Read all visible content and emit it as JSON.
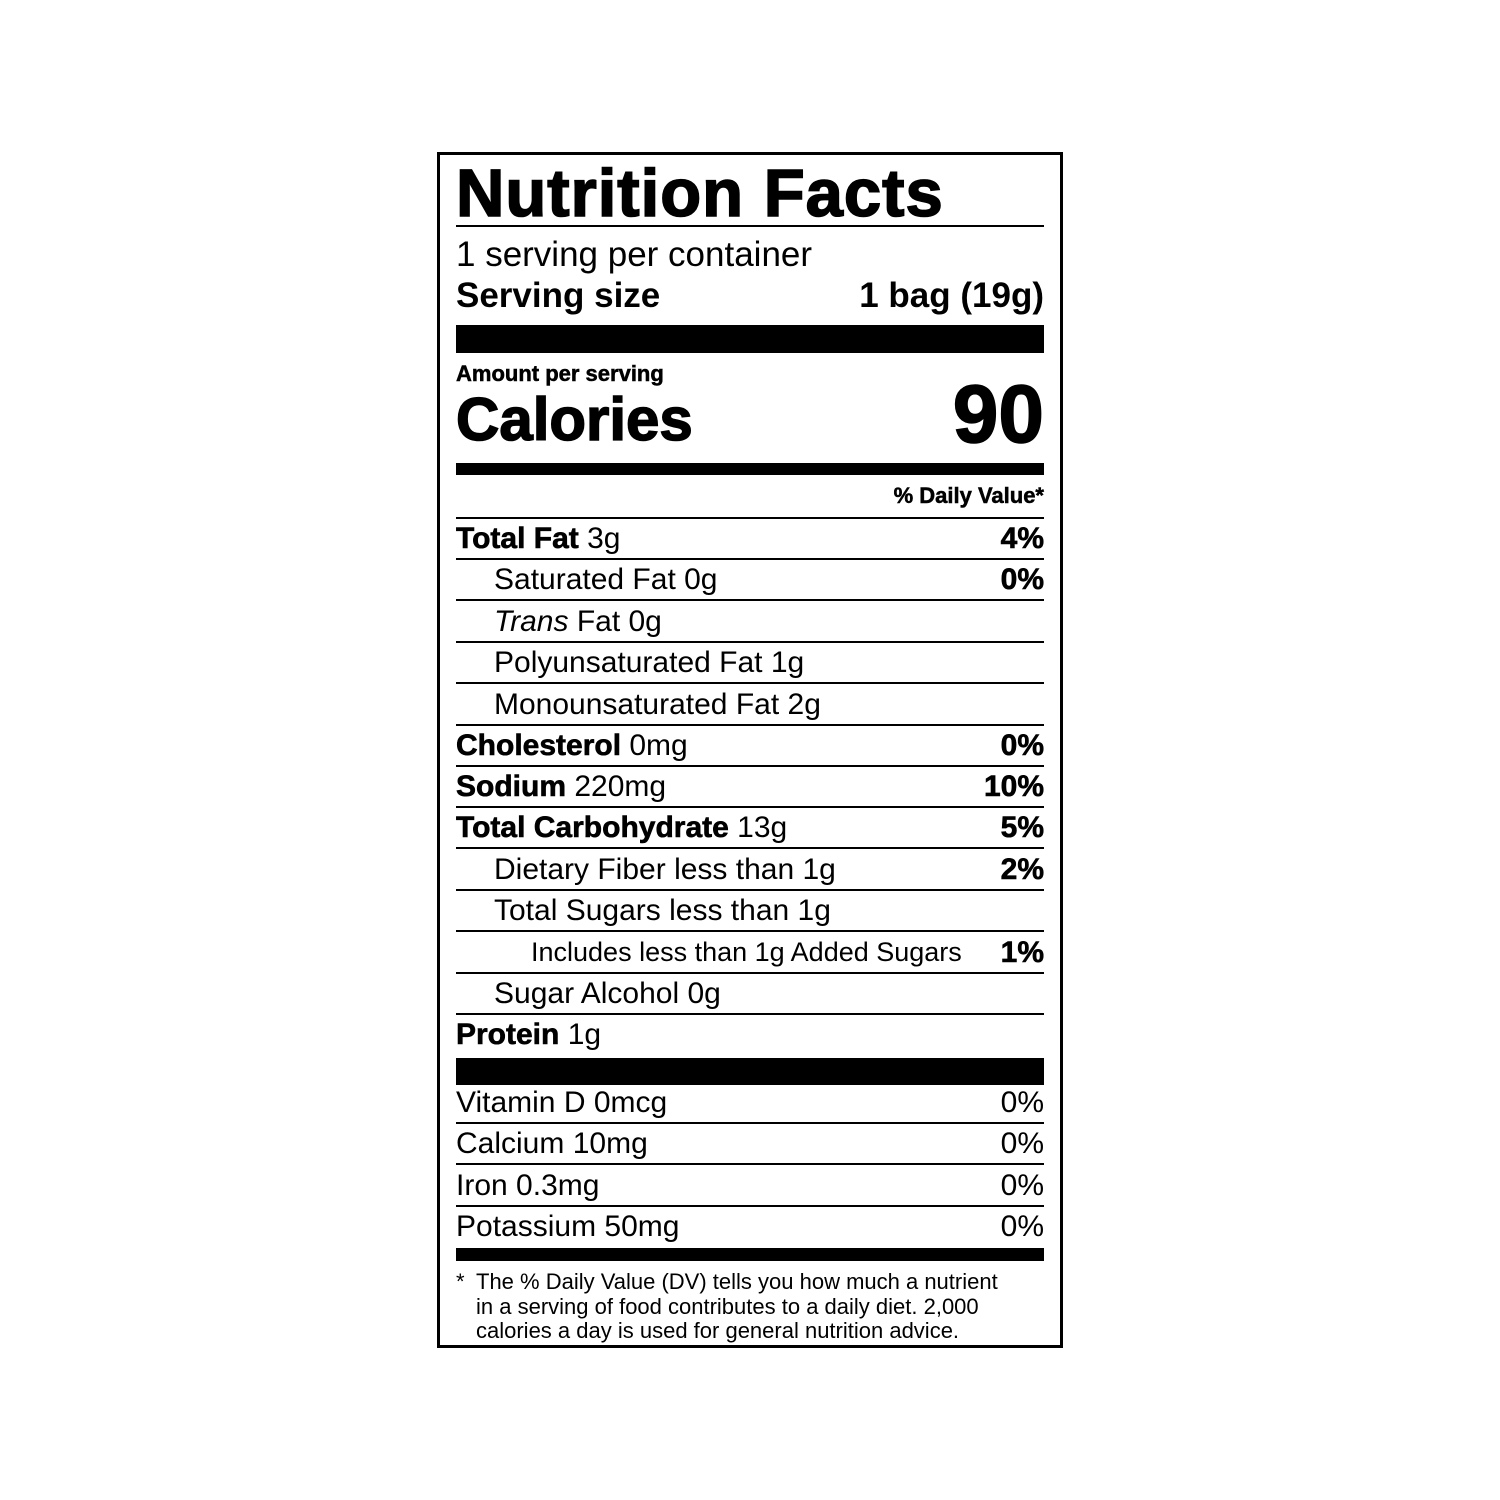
{
  "title": "Nutrition Facts",
  "servings": "1 serving per container",
  "serving_size": {
    "label": "Serving size",
    "value": "1 bag (19g)"
  },
  "amount_per_serving": "Amount per serving",
  "calories": {
    "label": "Calories",
    "value": "90"
  },
  "dv_header": "% Daily Value*",
  "nutrients": [
    {
      "name": "Total Fat",
      "amount": "3g",
      "dv": "4%"
    },
    {
      "name": "Saturated Fat",
      "amount": "0g",
      "dv": "0%"
    },
    {
      "name": "Trans",
      "amount": "Fat 0g"
    },
    {
      "name": "Polyunsaturated Fat",
      "amount": "1g"
    },
    {
      "name": "Monounsaturated Fat",
      "amount": "2g"
    },
    {
      "name": "Cholesterol",
      "amount": "0mg",
      "dv": "0%"
    },
    {
      "name": "Sodium",
      "amount": "220mg",
      "dv": "10%"
    },
    {
      "name": "Total Carbohydrate",
      "amount": "13g",
      "dv": "5%"
    },
    {
      "name": "Dietary Fiber",
      "amount": "less than 1g",
      "dv": "2%"
    },
    {
      "name": "Total Sugars",
      "amount": "less than 1g"
    },
    {
      "name": "Includes less than 1g Added Sugars",
      "dv": "1%"
    },
    {
      "name": "Sugar Alcohol",
      "amount": "0g"
    },
    {
      "name": "Protein",
      "amount": "1g"
    }
  ],
  "vitamins": [
    {
      "name": "Vitamin D",
      "amount": "0mcg",
      "dv": "0%"
    },
    {
      "name": "Calcium",
      "amount": "10mg",
      "dv": "0%"
    },
    {
      "name": "Iron",
      "amount": "0.3mg",
      "dv": "0%"
    },
    {
      "name": "Potassium",
      "amount": "50mg",
      "dv": "0%"
    }
  ],
  "footnote": {
    "mark": "*",
    "lines": [
      "The % Daily Value (DV) tells you how much a nutrient",
      "in a serving of food contributes to a daily diet. 2,000",
      "calories a day is used for general nutrition advice."
    ]
  }
}
